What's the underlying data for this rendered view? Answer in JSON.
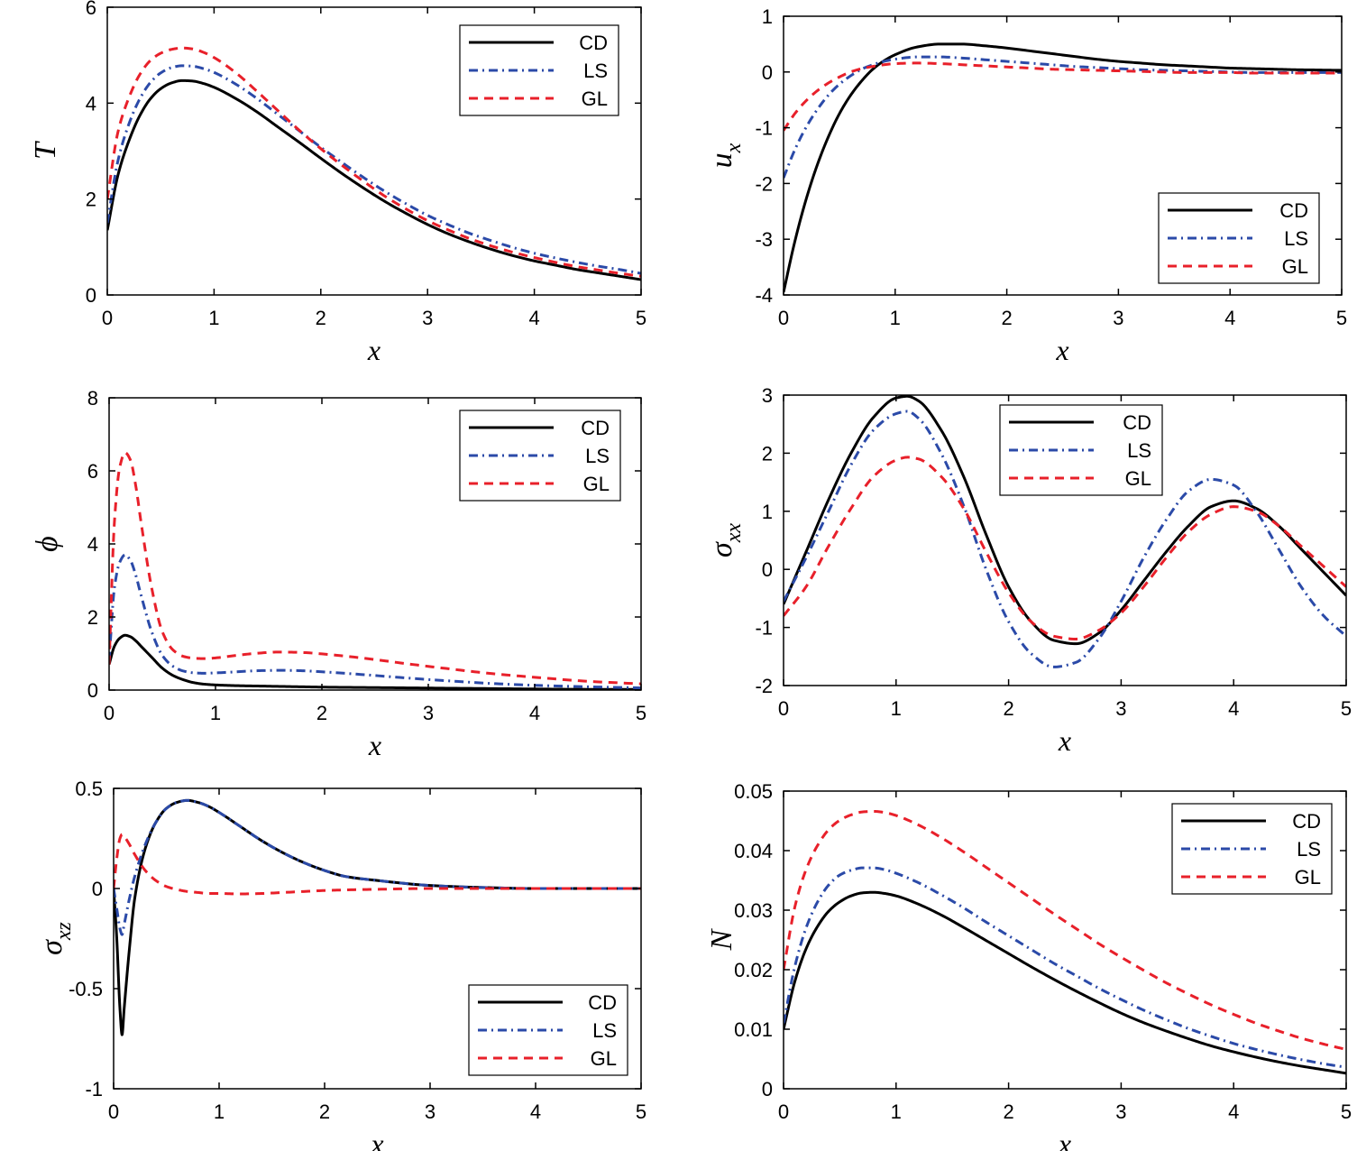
{
  "figure": {
    "title": "",
    "legend_labels": [
      "CD",
      "LS",
      "GL"
    ]
  },
  "colors": {
    "CD": "#000000",
    "LS": "#2b4aa8",
    "GL": "#e8202a",
    "axis": "#000000",
    "background": "#ffffff"
  },
  "chart_data": [
    {
      "id": "T",
      "type": "line",
      "title": "",
      "xlabel": "x",
      "ylabel": "T",
      "ylabel_sub": "",
      "xlim": [
        0,
        5
      ],
      "ylim": [
        0,
        6
      ],
      "xticks": [
        0,
        1,
        2,
        3,
        4,
        5
      ],
      "yticks": [
        0,
        2,
        4,
        6
      ],
      "xticklabels": [
        "0",
        "1",
        "2",
        "3",
        "4",
        "5"
      ],
      "yticklabels": [
        "0",
        "2",
        "4",
        "6"
      ],
      "grid": false,
      "legend_position": "top-right",
      "x": [
        0,
        0.1,
        0.2,
        0.3,
        0.4,
        0.5,
        0.6,
        0.7,
        0.8,
        0.9,
        1.0,
        1.2,
        1.4,
        1.6,
        1.8,
        2.0,
        2.2,
        2.4,
        2.6,
        2.8,
        3.0,
        3.2,
        3.4,
        3.6,
        3.8,
        4.0,
        4.2,
        4.4,
        4.6,
        4.8,
        5.0
      ],
      "series": [
        {
          "name": "CD",
          "values": [
            1.35,
            2.5,
            3.2,
            3.72,
            4.08,
            4.3,
            4.42,
            4.47,
            4.46,
            4.41,
            4.33,
            4.1,
            3.82,
            3.5,
            3.18,
            2.85,
            2.53,
            2.23,
            1.95,
            1.7,
            1.47,
            1.27,
            1.1,
            0.95,
            0.82,
            0.71,
            0.62,
            0.53,
            0.46,
            0.39,
            0.32
          ]
        },
        {
          "name": "LS",
          "values": [
            1.5,
            2.8,
            3.55,
            4.07,
            4.42,
            4.63,
            4.74,
            4.78,
            4.77,
            4.72,
            4.64,
            4.4,
            4.1,
            3.76,
            3.42,
            3.08,
            2.76,
            2.45,
            2.16,
            1.9,
            1.66,
            1.46,
            1.28,
            1.13,
            0.99,
            0.87,
            0.77,
            0.68,
            0.6,
            0.53,
            0.45
          ]
        },
        {
          "name": "GL",
          "values": [
            2.0,
            3.4,
            4.1,
            4.58,
            4.88,
            5.04,
            5.12,
            5.15,
            5.13,
            5.06,
            4.95,
            4.64,
            4.25,
            3.84,
            3.43,
            3.05,
            2.7,
            2.37,
            2.06,
            1.79,
            1.55,
            1.35,
            1.17,
            1.02,
            0.89,
            0.78,
            0.68,
            0.59,
            0.52,
            0.45,
            0.39
          ]
        }
      ]
    },
    {
      "id": "ux",
      "type": "line",
      "title": "",
      "xlabel": "x",
      "ylabel": "u",
      "ylabel_sub": "x",
      "xlim": [
        0,
        5
      ],
      "ylim": [
        -4,
        1
      ],
      "xticks": [
        0,
        1,
        2,
        3,
        4,
        5
      ],
      "yticks": [
        -4,
        -3,
        -2,
        -1,
        0,
        1
      ],
      "xticklabels": [
        "0",
        "1",
        "2",
        "3",
        "4",
        "5"
      ],
      "yticklabels": [
        "-4",
        "-3",
        "-2",
        "-1",
        "0",
        "1"
      ],
      "grid": false,
      "legend_position": "bottom-right",
      "x": [
        0,
        0.1,
        0.2,
        0.3,
        0.4,
        0.5,
        0.6,
        0.7,
        0.8,
        0.9,
        1.0,
        1.2,
        1.4,
        1.6,
        1.8,
        2.0,
        2.2,
        2.4,
        2.6,
        2.8,
        3.0,
        3.2,
        3.4,
        3.6,
        3.8,
        4.0,
        4.2,
        4.4,
        4.6,
        4.8,
        5.0
      ],
      "series": [
        {
          "name": "CD",
          "values": [
            -3.95,
            -3.05,
            -2.3,
            -1.68,
            -1.17,
            -0.75,
            -0.42,
            -0.16,
            0.05,
            0.2,
            0.31,
            0.45,
            0.5,
            0.5,
            0.47,
            0.43,
            0.38,
            0.33,
            0.28,
            0.23,
            0.19,
            0.16,
            0.13,
            0.11,
            0.09,
            0.07,
            0.06,
            0.05,
            0.04,
            0.035,
            0.03
          ]
        },
        {
          "name": "LS",
          "values": [
            -1.9,
            -1.4,
            -1.0,
            -0.68,
            -0.42,
            -0.22,
            -0.07,
            0.05,
            0.13,
            0.19,
            0.23,
            0.27,
            0.27,
            0.25,
            0.22,
            0.19,
            0.16,
            0.13,
            0.1,
            0.08,
            0.06,
            0.04,
            0.03,
            0.02,
            0.01,
            0.0,
            -0.01,
            -0.01,
            -0.01,
            -0.01,
            -0.01
          ]
        },
        {
          "name": "GL",
          "values": [
            -1.05,
            -0.75,
            -0.52,
            -0.34,
            -0.2,
            -0.09,
            0.0,
            0.06,
            0.1,
            0.13,
            0.15,
            0.16,
            0.15,
            0.13,
            0.11,
            0.09,
            0.07,
            0.05,
            0.04,
            0.03,
            0.02,
            0.01,
            0.0,
            -0.01,
            -0.01,
            -0.01,
            -0.02,
            -0.02,
            -0.02,
            -0.02,
            -0.02
          ]
        }
      ]
    },
    {
      "id": "phi",
      "type": "line",
      "title": "",
      "xlabel": "x",
      "ylabel": "ϕ",
      "ylabel_sub": "",
      "xlim": [
        0,
        5
      ],
      "ylim": [
        0,
        8
      ],
      "xticks": [
        0,
        1,
        2,
        3,
        4,
        5
      ],
      "yticks": [
        0,
        2,
        4,
        6,
        8
      ],
      "xticklabels": [
        "0",
        "1",
        "2",
        "3",
        "4",
        "5"
      ],
      "yticklabels": [
        "0",
        "2",
        "4",
        "6",
        "8"
      ],
      "grid": false,
      "legend_position": "top-right",
      "x": [
        0,
        0.05,
        0.1,
        0.15,
        0.2,
        0.25,
        0.3,
        0.4,
        0.5,
        0.6,
        0.7,
        0.8,
        0.9,
        1.0,
        1.2,
        1.4,
        1.6,
        1.8,
        2.0,
        2.4,
        2.8,
        3.2,
        3.6,
        4.0,
        4.5,
        5.0
      ],
      "series": [
        {
          "name": "CD",
          "values": [
            0.7,
            1.2,
            1.42,
            1.5,
            1.46,
            1.35,
            1.2,
            0.9,
            0.6,
            0.4,
            0.28,
            0.2,
            0.16,
            0.14,
            0.12,
            0.11,
            0.1,
            0.09,
            0.08,
            0.07,
            0.06,
            0.05,
            0.04,
            0.03,
            0.02,
            0.02
          ]
        },
        {
          "name": "LS",
          "values": [
            0.8,
            2.8,
            3.5,
            3.7,
            3.55,
            3.15,
            2.6,
            1.6,
            0.95,
            0.65,
            0.52,
            0.47,
            0.46,
            0.47,
            0.5,
            0.53,
            0.54,
            0.53,
            0.5,
            0.42,
            0.33,
            0.25,
            0.18,
            0.13,
            0.09,
            0.06
          ]
        },
        {
          "name": "GL",
          "values": [
            0.7,
            4.6,
            6.1,
            6.5,
            6.3,
            5.6,
            4.6,
            2.8,
            1.6,
            1.1,
            0.92,
            0.87,
            0.86,
            0.88,
            0.95,
            1.01,
            1.04,
            1.03,
            0.99,
            0.87,
            0.72,
            0.58,
            0.45,
            0.35,
            0.24,
            0.17
          ]
        }
      ]
    },
    {
      "id": "sxx",
      "type": "line",
      "title": "",
      "xlabel": "x",
      "ylabel": "σ",
      "ylabel_sub": "xx",
      "xlim": [
        0,
        5
      ],
      "ylim": [
        -2,
        3
      ],
      "xticks": [
        0,
        1,
        2,
        3,
        4,
        5
      ],
      "yticks": [
        -2,
        -1,
        0,
        1,
        2,
        3
      ],
      "xticklabels": [
        "0",
        "1",
        "2",
        "3",
        "4",
        "5"
      ],
      "yticklabels": [
        "-2",
        "-1",
        "0",
        "1",
        "2",
        "3"
      ],
      "grid": false,
      "legend_position": "top-center",
      "x": [
        0,
        0.2,
        0.4,
        0.6,
        0.8,
        1.0,
        1.1,
        1.2,
        1.4,
        1.6,
        1.8,
        2.0,
        2.2,
        2.4,
        2.6,
        2.8,
        3.0,
        3.2,
        3.4,
        3.6,
        3.8,
        4.0,
        4.2,
        4.4,
        4.6,
        4.8,
        5.0
      ],
      "series": [
        {
          "name": "CD",
          "values": [
            -0.6,
            0.3,
            1.2,
            2.0,
            2.62,
            2.95,
            2.98,
            2.9,
            2.4,
            1.6,
            0.6,
            -0.3,
            -0.9,
            -1.22,
            -1.28,
            -1.1,
            -0.7,
            -0.2,
            0.3,
            0.75,
            1.08,
            1.18,
            1.05,
            0.75,
            0.35,
            -0.05,
            -0.45
          ]
        },
        {
          "name": "LS",
          "values": [
            -0.55,
            0.2,
            1.0,
            1.8,
            2.4,
            2.68,
            2.72,
            2.6,
            2.0,
            1.1,
            0.0,
            -0.9,
            -1.45,
            -1.68,
            -1.6,
            -1.2,
            -0.55,
            0.2,
            0.85,
            1.35,
            1.55,
            1.45,
            1.0,
            0.35,
            -0.3,
            -0.8,
            -1.15
          ]
        },
        {
          "name": "GL",
          "values": [
            -0.8,
            -0.3,
            0.4,
            1.05,
            1.6,
            1.88,
            1.93,
            1.9,
            1.6,
            1.05,
            0.3,
            -0.4,
            -0.9,
            -1.15,
            -1.2,
            -1.05,
            -0.75,
            -0.3,
            0.2,
            0.65,
            0.95,
            1.08,
            1.0,
            0.75,
            0.4,
            0.05,
            -0.3
          ]
        }
      ]
    },
    {
      "id": "sxz",
      "type": "line",
      "title": "",
      "xlabel": "x",
      "ylabel": "σ",
      "ylabel_sub": "xz",
      "xlim": [
        0,
        5
      ],
      "ylim": [
        -1,
        0.5
      ],
      "xticks": [
        0,
        1,
        2,
        3,
        4,
        5
      ],
      "yticks": [
        -1,
        -0.5,
        0,
        0.5
      ],
      "xticklabels": [
        "0",
        "1",
        "2",
        "3",
        "4",
        "5"
      ],
      "yticklabels": [
        "-1",
        "-0.5",
        "0",
        "0.5"
      ],
      "grid": false,
      "legend_position": "bottom-right",
      "x": [
        0,
        0.03,
        0.06,
        0.08,
        0.1,
        0.15,
        0.2,
        0.3,
        0.4,
        0.5,
        0.6,
        0.7,
        0.8,
        0.9,
        1.0,
        1.2,
        1.4,
        1.6,
        1.8,
        2.0,
        2.2,
        2.5,
        3.0,
        3.5,
        4.0,
        4.5,
        5.0
      ],
      "series": [
        {
          "name": "CD",
          "values": [
            0.0,
            -0.25,
            -0.6,
            -0.73,
            -0.6,
            -0.3,
            -0.05,
            0.2,
            0.33,
            0.4,
            0.43,
            0.44,
            0.43,
            0.41,
            0.38,
            0.31,
            0.24,
            0.18,
            0.13,
            0.09,
            0.06,
            0.04,
            0.015,
            0.005,
            0.0,
            0.0,
            0.0
          ]
        },
        {
          "name": "LS",
          "values": [
            0.0,
            -0.1,
            -0.2,
            -0.23,
            -0.18,
            -0.05,
            0.06,
            0.22,
            0.33,
            0.4,
            0.43,
            0.44,
            0.43,
            0.41,
            0.38,
            0.31,
            0.24,
            0.18,
            0.13,
            0.09,
            0.06,
            0.04,
            0.015,
            0.005,
            0.0,
            0.0,
            0.0
          ]
        },
        {
          "name": "GL",
          "values": [
            0.0,
            0.15,
            0.25,
            0.27,
            0.26,
            0.22,
            0.17,
            0.09,
            0.04,
            0.01,
            -0.005,
            -0.015,
            -0.02,
            -0.025,
            -0.025,
            -0.027,
            -0.025,
            -0.02,
            -0.015,
            -0.01,
            -0.007,
            -0.004,
            0.0,
            0.0,
            0.0,
            0.0,
            0.0
          ]
        }
      ]
    },
    {
      "id": "N",
      "type": "line",
      "title": "",
      "xlabel": "x",
      "ylabel": "N",
      "ylabel_sub": "",
      "xlim": [
        0,
        5
      ],
      "ylim": [
        0,
        0.05
      ],
      "xticks": [
        0,
        1,
        2,
        3,
        4,
        5
      ],
      "yticks": [
        0,
        0.01,
        0.02,
        0.03,
        0.04,
        0.05
      ],
      "xticklabels": [
        "0",
        "1",
        "2",
        "3",
        "4",
        "5"
      ],
      "yticklabels": [
        "0",
        "0.01",
        "0.02",
        "0.03",
        "0.04",
        "0.05"
      ],
      "grid": false,
      "legend_position": "top-right",
      "x": [
        0,
        0.1,
        0.2,
        0.3,
        0.4,
        0.5,
        0.6,
        0.7,
        0.8,
        0.9,
        1.0,
        1.2,
        1.4,
        1.6,
        1.8,
        2.0,
        2.2,
        2.4,
        2.6,
        2.8,
        3.0,
        3.2,
        3.4,
        3.6,
        3.8,
        4.0,
        4.2,
        4.4,
        4.6,
        4.8,
        5.0
      ],
      "series": [
        {
          "name": "CD",
          "values": [
            0.01,
            0.018,
            0.0235,
            0.0272,
            0.0298,
            0.0314,
            0.0324,
            0.0329,
            0.033,
            0.0328,
            0.0324,
            0.031,
            0.0292,
            0.0271,
            0.0249,
            0.0227,
            0.0205,
            0.0184,
            0.0164,
            0.0145,
            0.0127,
            0.0111,
            0.0097,
            0.0084,
            0.0072,
            0.0062,
            0.0053,
            0.0045,
            0.0038,
            0.0032,
            0.0026
          ]
        },
        {
          "name": "LS",
          "values": [
            0.011,
            0.0205,
            0.027,
            0.0313,
            0.0342,
            0.0359,
            0.0367,
            0.0371,
            0.0371,
            0.0368,
            0.0362,
            0.0346,
            0.0326,
            0.0304,
            0.028,
            0.0257,
            0.0234,
            0.0211,
            0.019,
            0.0169,
            0.015,
            0.0132,
            0.0116,
            0.0101,
            0.0088,
            0.0076,
            0.0066,
            0.0057,
            0.0049,
            0.0042,
            0.0036
          ]
        },
        {
          "name": "GL",
          "values": [
            0.02,
            0.0305,
            0.0368,
            0.0408,
            0.0435,
            0.0451,
            0.046,
            0.0465,
            0.0466,
            0.0464,
            0.0459,
            0.0443,
            0.0422,
            0.0398,
            0.0372,
            0.0346,
            0.032,
            0.0294,
            0.0269,
            0.0244,
            0.0221,
            0.0199,
            0.0178,
            0.0159,
            0.0141,
            0.0125,
            0.011,
            0.0097,
            0.0085,
            0.0075,
            0.0066
          ]
        }
      ]
    }
  ]
}
